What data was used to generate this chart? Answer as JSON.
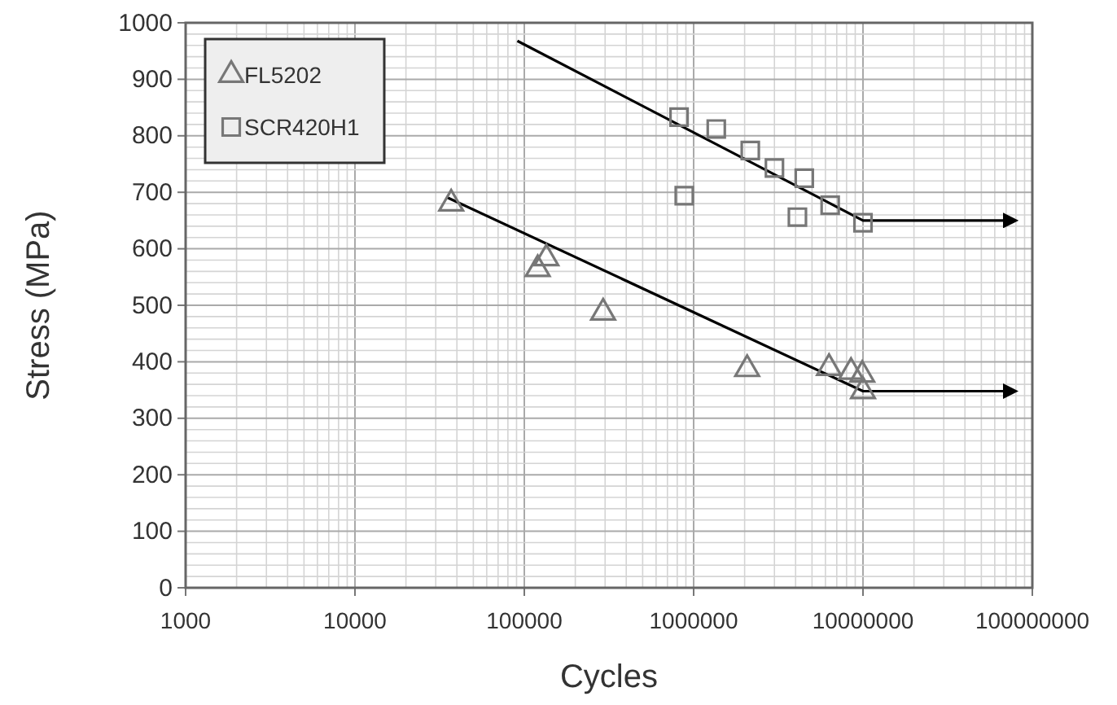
{
  "chart_data": {
    "type": "scatter",
    "xlabel": "Cycles",
    "ylabel": "Stress (MPa)",
    "log": "x",
    "grid": true,
    "legend": "top left",
    "xlim": [
      1000,
      100000000
    ],
    "xticks": [
      1000,
      10000,
      100000,
      1000000,
      10000000,
      100000000
    ],
    "ylim": [
      0,
      1000
    ],
    "yticks": [
      0,
      100,
      200,
      300,
      400,
      500,
      600,
      700,
      800,
      900,
      1000
    ],
    "series": [
      {
        "name": "FL5202",
        "marker": "triangle",
        "color": "#777777",
        "x": [
          37000,
          120000,
          135000,
          292000,
          2070000,
          6300000,
          8500000,
          9900000,
          10000000
        ],
        "values": [
          680,
          564,
          583,
          487,
          387,
          389,
          382,
          377,
          348
        ]
      },
      {
        "name": "SCR420H1",
        "marker": "square",
        "color": "#777777",
        "x": [
          820000,
          880000,
          1360000,
          2160000,
          3000000,
          4100000,
          4500000,
          6400000,
          10000000
        ],
        "values": [
          833,
          694,
          812,
          774,
          743,
          656,
          725,
          677,
          646
        ]
      },
      {
        "type": "line",
        "marker": "none",
        "line_style": "solid",
        "color": "#000000",
        "x": [
          91000,
          10000000,
          70000000
        ],
        "values": [
          968,
          650,
          650
        ]
      },
      {
        "type": "line",
        "marker": "none",
        "line_style": "solid",
        "color": "#000000",
        "x": [
          35000,
          10000000,
          70000000
        ],
        "values": [
          691,
          348,
          348
        ]
      }
    ]
  }
}
